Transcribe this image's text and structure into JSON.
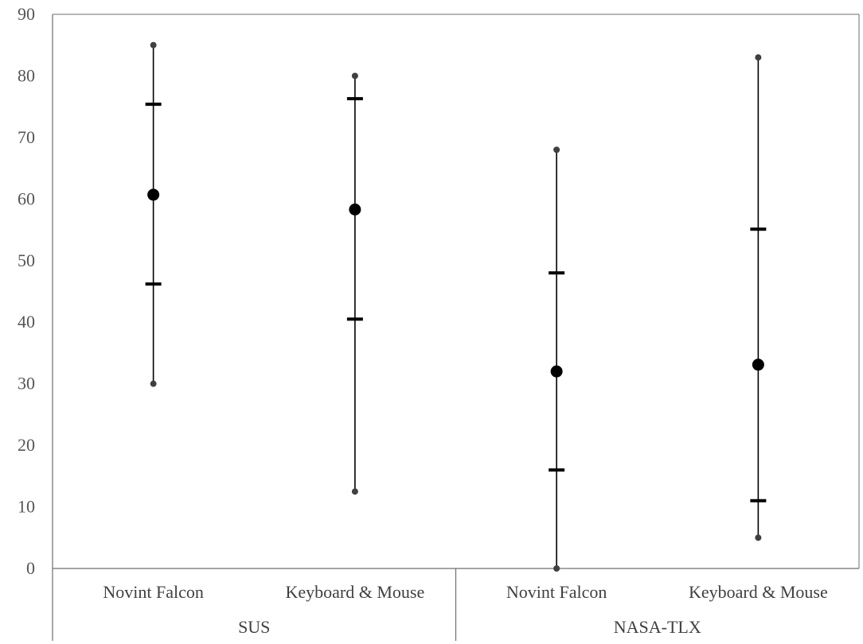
{
  "chart_data": {
    "type": "scatter",
    "title": "",
    "xlabel": "",
    "ylabel": "",
    "ylim": [
      0,
      90
    ],
    "yticks": [
      "0",
      "10",
      "20",
      "30",
      "40",
      "50",
      "60",
      "70",
      "80",
      "90"
    ],
    "grid": false,
    "legend": "none",
    "groups": [
      {
        "label": "SUS",
        "categories": [
          {
            "label": "Novint Falcon",
            "min": 30,
            "q1": 46.2,
            "mean": 60.7,
            "q3": 75.4,
            "max": 85
          },
          {
            "label": "Keyboard & Mouse",
            "min": 12.5,
            "q1": 40.5,
            "mean": 58.3,
            "q3": 76.3,
            "max": 80
          }
        ]
      },
      {
        "label": "NASA-TLX",
        "categories": [
          {
            "label": "Novint Falcon",
            "min": 0,
            "q1": 16,
            "mean": 32,
            "q3": 48,
            "max": 68
          },
          {
            "label": "Keyboard & Mouse",
            "min": 5,
            "q1": 11,
            "mean": 33.1,
            "q3": 55.1,
            "max": 83
          }
        ]
      }
    ],
    "colors": {
      "marker": "#000000",
      "whisker_end": "#404040",
      "axis": "#6e6e6e",
      "text": "#404040"
    }
  }
}
